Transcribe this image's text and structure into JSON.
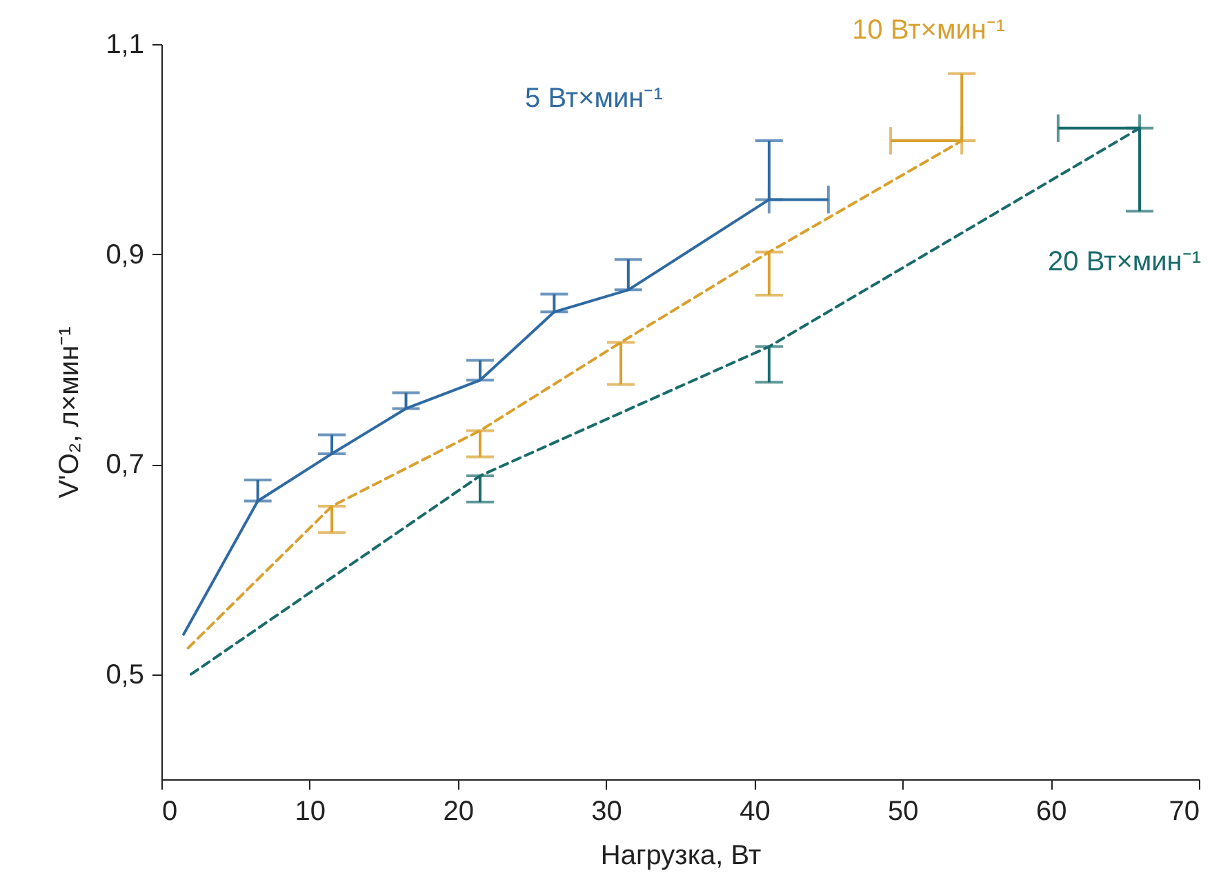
{
  "chart_data": {
    "type": "line",
    "xlabel": "Нагрузка, Вт",
    "ylabel": "V'O₂, л×мин⁻¹",
    "xlim": [
      0,
      70
    ],
    "xticks": [
      0,
      10,
      20,
      30,
      40,
      50,
      60,
      70
    ],
    "ylim": [
      0.4,
      1.1
    ],
    "yticks": [
      {
        "value": 0.5,
        "label": "0,5"
      },
      {
        "value": 0.7,
        "label": "0,7"
      },
      {
        "value": 0.9,
        "label": "0,9"
      },
      {
        "value": 1.1,
        "label": "1,1"
      }
    ],
    "grid": false,
    "marker": "none",
    "series": [
      {
        "name": "5 Вт×мин⁻¹",
        "color": "#2f6aa3",
        "line_style": "solid",
        "x": [
          1.5,
          6.5,
          11.5,
          16.5,
          21.5,
          26.5,
          31.5,
          41
        ],
        "values": [
          0.538,
          0.665,
          0.71,
          0.753,
          0.78,
          0.845,
          0.866,
          0.952
        ],
        "errors": [
          null,
          [
            0.665,
            0.685
          ],
          [
            0.71,
            0.728
          ],
          [
            0.753,
            0.768
          ],
          [
            0.78,
            0.799
          ],
          [
            0.845,
            0.862
          ],
          [
            0.866,
            0.895
          ],
          [
            0.952,
            1.008
          ]
        ],
        "xerrors": [
          null,
          null,
          null,
          null,
          null,
          null,
          null,
          [
            41,
            45
          ]
        ]
      },
      {
        "name": "10 Вт×мин⁻¹",
        "color": "#d9a02e",
        "line_style": "dashed",
        "x": [
          1.8,
          11.5,
          21.5,
          31,
          41,
          54
        ],
        "values": [
          0.525,
          0.66,
          0.732,
          0.816,
          0.902,
          1.008
        ],
        "errors": [
          null,
          [
            0.635,
            0.66
          ],
          [
            0.707,
            0.732
          ],
          [
            0.776,
            0.816
          ],
          [
            0.861,
            0.902
          ],
          [
            1.008,
            1.072
          ]
        ],
        "xerrors": [
          null,
          null,
          null,
          null,
          null,
          [
            49.2,
            54
          ]
        ]
      },
      {
        "name": "20 Вт×мин⁻¹",
        "color": "#1a6b6b",
        "line_style": "dashed",
        "x": [
          2,
          21.5,
          41,
          66
        ],
        "values": [
          0.5,
          0.689,
          0.812,
          1.02
        ],
        "errors": [
          null,
          [
            0.664,
            0.689
          ],
          [
            0.778,
            0.812
          ],
          [
            0.941,
            1.02
          ]
        ],
        "xerrors": [
          null,
          null,
          null,
          [
            60.5,
            66
          ]
        ]
      }
    ]
  }
}
